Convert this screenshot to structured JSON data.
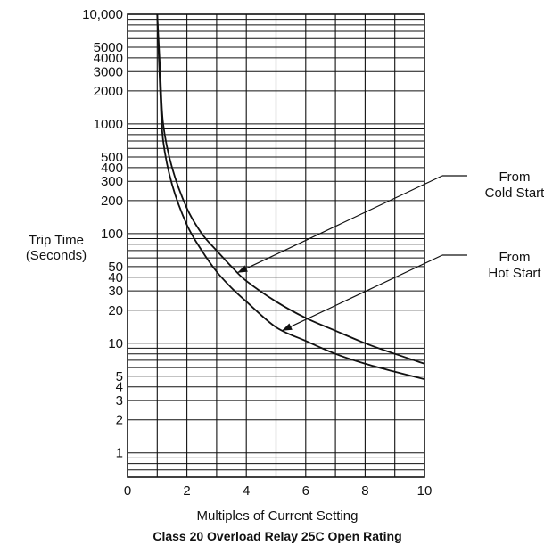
{
  "chart_data": {
    "type": "line",
    "title": "Class 20 Overload Relay 25C Open Rating",
    "xlabel": "Multiples of Current Setting",
    "ylabel_line1": "Trip Time",
    "ylabel_line2": "(Seconds)",
    "xlim": [
      0,
      10
    ],
    "ylim": [
      0.6,
      10000
    ],
    "yscale": "log",
    "grid": true,
    "x_ticks": [
      0,
      2,
      4,
      6,
      8,
      10
    ],
    "x_tick_labels": [
      "0",
      "2",
      "4",
      "6",
      "8",
      "10"
    ],
    "y_ticks": [
      1,
      2,
      3,
      4,
      5,
      10,
      20,
      30,
      40,
      50,
      100,
      200,
      300,
      400,
      500,
      1000,
      2000,
      3000,
      4000,
      5000,
      10000
    ],
    "y_tick_labels": [
      "1",
      "2",
      "3",
      "4",
      "5",
      "10",
      "20",
      "30",
      "40",
      "50",
      "100",
      "200",
      "300",
      "400",
      "500",
      "1000",
      "2000",
      "3000",
      "4000",
      "5000",
      "10,000"
    ],
    "series": [
      {
        "name": "From Cold Start",
        "label_line1": "From",
        "label_line2": "Cold Start",
        "points": [
          [
            1.0,
            10000
          ],
          [
            1.1,
            3000
          ],
          [
            1.2,
            1000
          ],
          [
            1.5,
            400
          ],
          [
            2.0,
            170
          ],
          [
            2.5,
            100
          ],
          [
            3.0,
            70
          ],
          [
            3.5,
            50
          ],
          [
            4.0,
            37
          ],
          [
            5.0,
            24
          ],
          [
            6.0,
            17
          ],
          [
            7.0,
            13
          ],
          [
            8.0,
            10
          ],
          [
            9.0,
            8
          ],
          [
            10.0,
            6.5
          ]
        ],
        "annotation_point": [
          3.7,
          44
        ]
      },
      {
        "name": "From Hot Start",
        "label_line1": "From",
        "label_line2": "Hot Start",
        "points": [
          [
            1.0,
            10000
          ],
          [
            1.1,
            2000
          ],
          [
            1.2,
            700
          ],
          [
            1.5,
            280
          ],
          [
            2.0,
            120
          ],
          [
            2.5,
            70
          ],
          [
            3.0,
            45
          ],
          [
            3.5,
            32
          ],
          [
            4.0,
            24
          ],
          [
            5.0,
            14
          ],
          [
            6.0,
            10.5
          ],
          [
            7.0,
            8
          ],
          [
            8.0,
            6.5
          ],
          [
            9.0,
            5.5
          ],
          [
            10.0,
            4.7
          ]
        ],
        "annotation_point": [
          5.2,
          13
        ]
      }
    ]
  }
}
